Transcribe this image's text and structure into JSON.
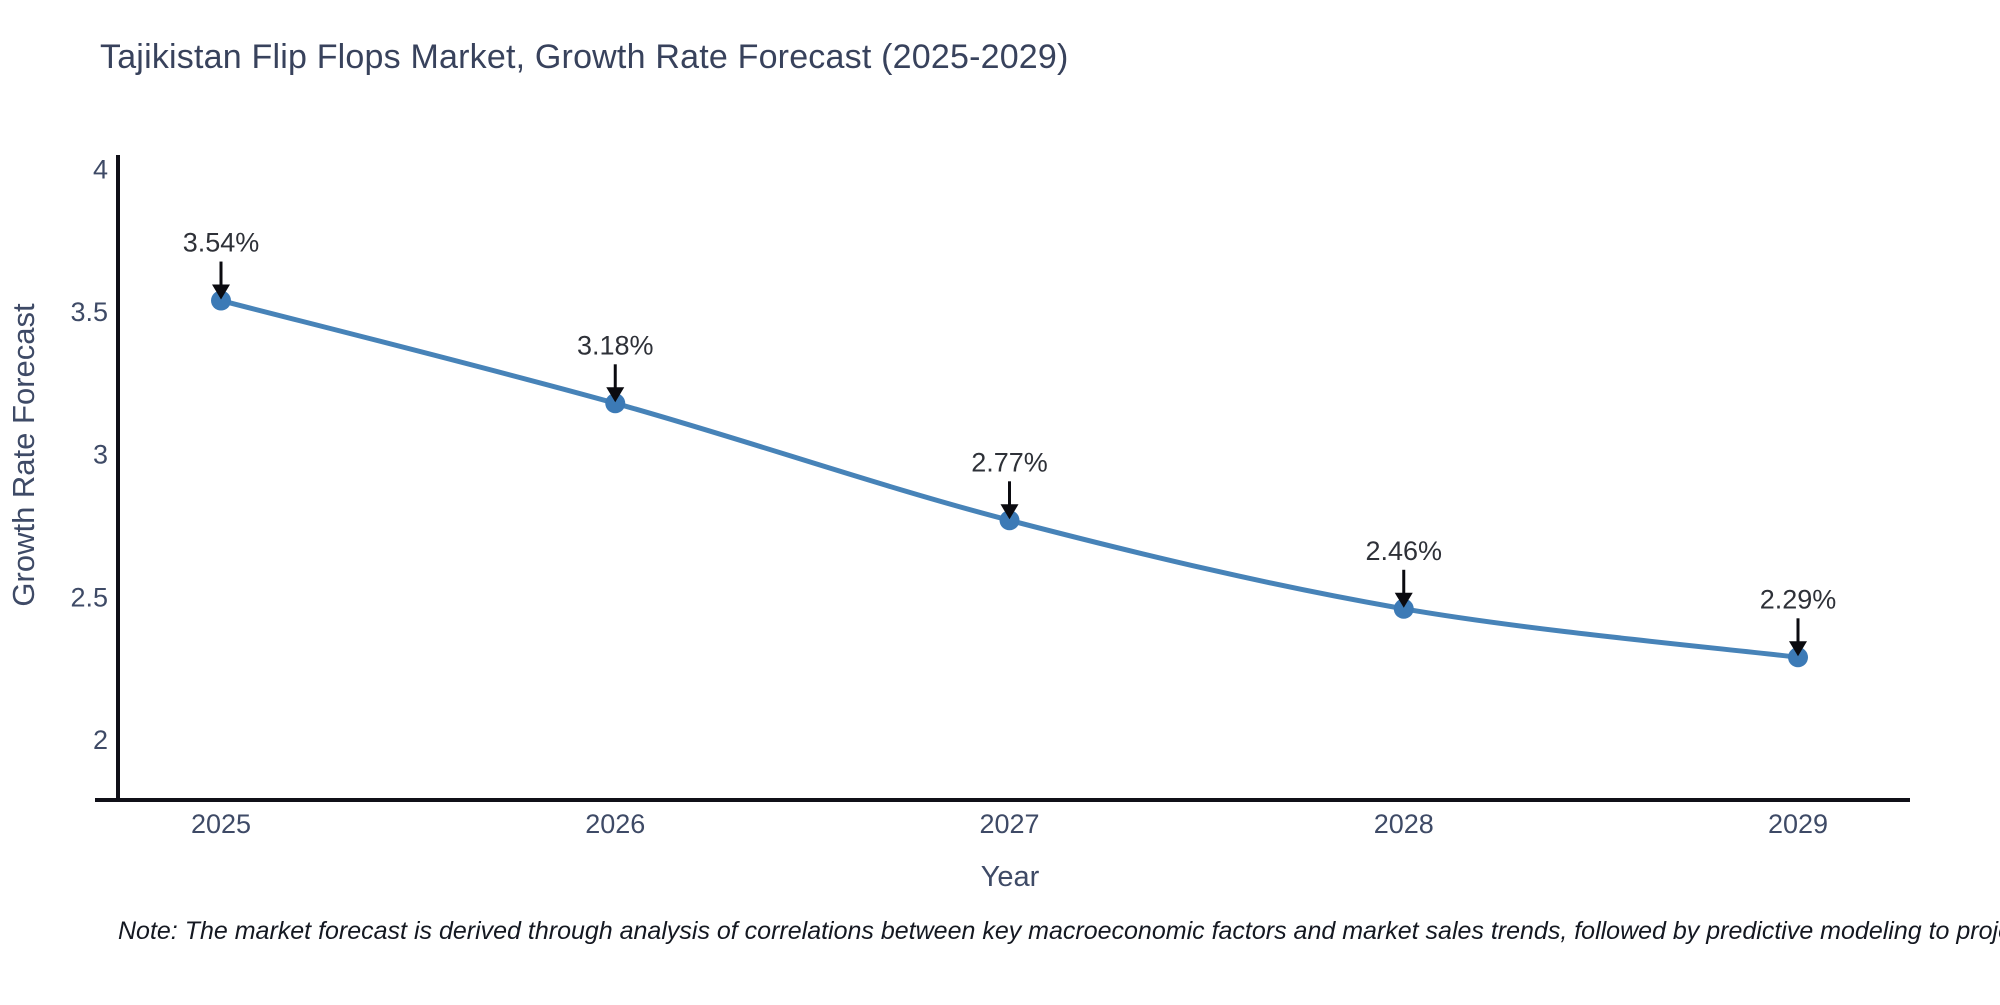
{
  "title": "Tajikistan Flip Flops Market, Growth Rate Forecast (2025-2029)",
  "footnote": "Note: The market forecast is derived through analysis of correlations between key macroeconomic factors and market sales trends, followed by predictive modeling to project future sales",
  "chart_data": {
    "type": "line",
    "title": "Tajikistan Flip Flops Market, Growth Rate Forecast (2025-2029)",
    "xlabel": "Year",
    "ylabel": "Growth Rate Forecast",
    "x": [
      2025,
      2026,
      2027,
      2028,
      2029
    ],
    "series": [
      {
        "name": "Growth Rate Forecast",
        "values": [
          3.54,
          3.18,
          2.77,
          2.46,
          2.29
        ]
      }
    ],
    "point_labels": [
      "3.54%",
      "3.18%",
      "2.77%",
      "2.46%",
      "2.29%"
    ],
    "yticks": [
      4,
      3.5,
      3,
      2.5,
      2
    ],
    "ytick_labels": [
      "4",
      "3.5",
      "3",
      "2.5",
      "2"
    ],
    "xtick_labels": [
      "2025",
      "2026",
      "2027",
      "2028",
      "2029"
    ],
    "ylim": [
      1.79,
      4.05
    ],
    "grid": false,
    "legend": false,
    "line_shape": "spline",
    "colors": {
      "line": "#4783b8",
      "marker": "#3c7ab6",
      "axis": "#101018",
      "title_text": "#38425c",
      "tick_text": "#3e4a66",
      "axis_title_text": "#3e4a66",
      "annotation_text": "#2e3138",
      "note_text": "#141821"
    }
  }
}
